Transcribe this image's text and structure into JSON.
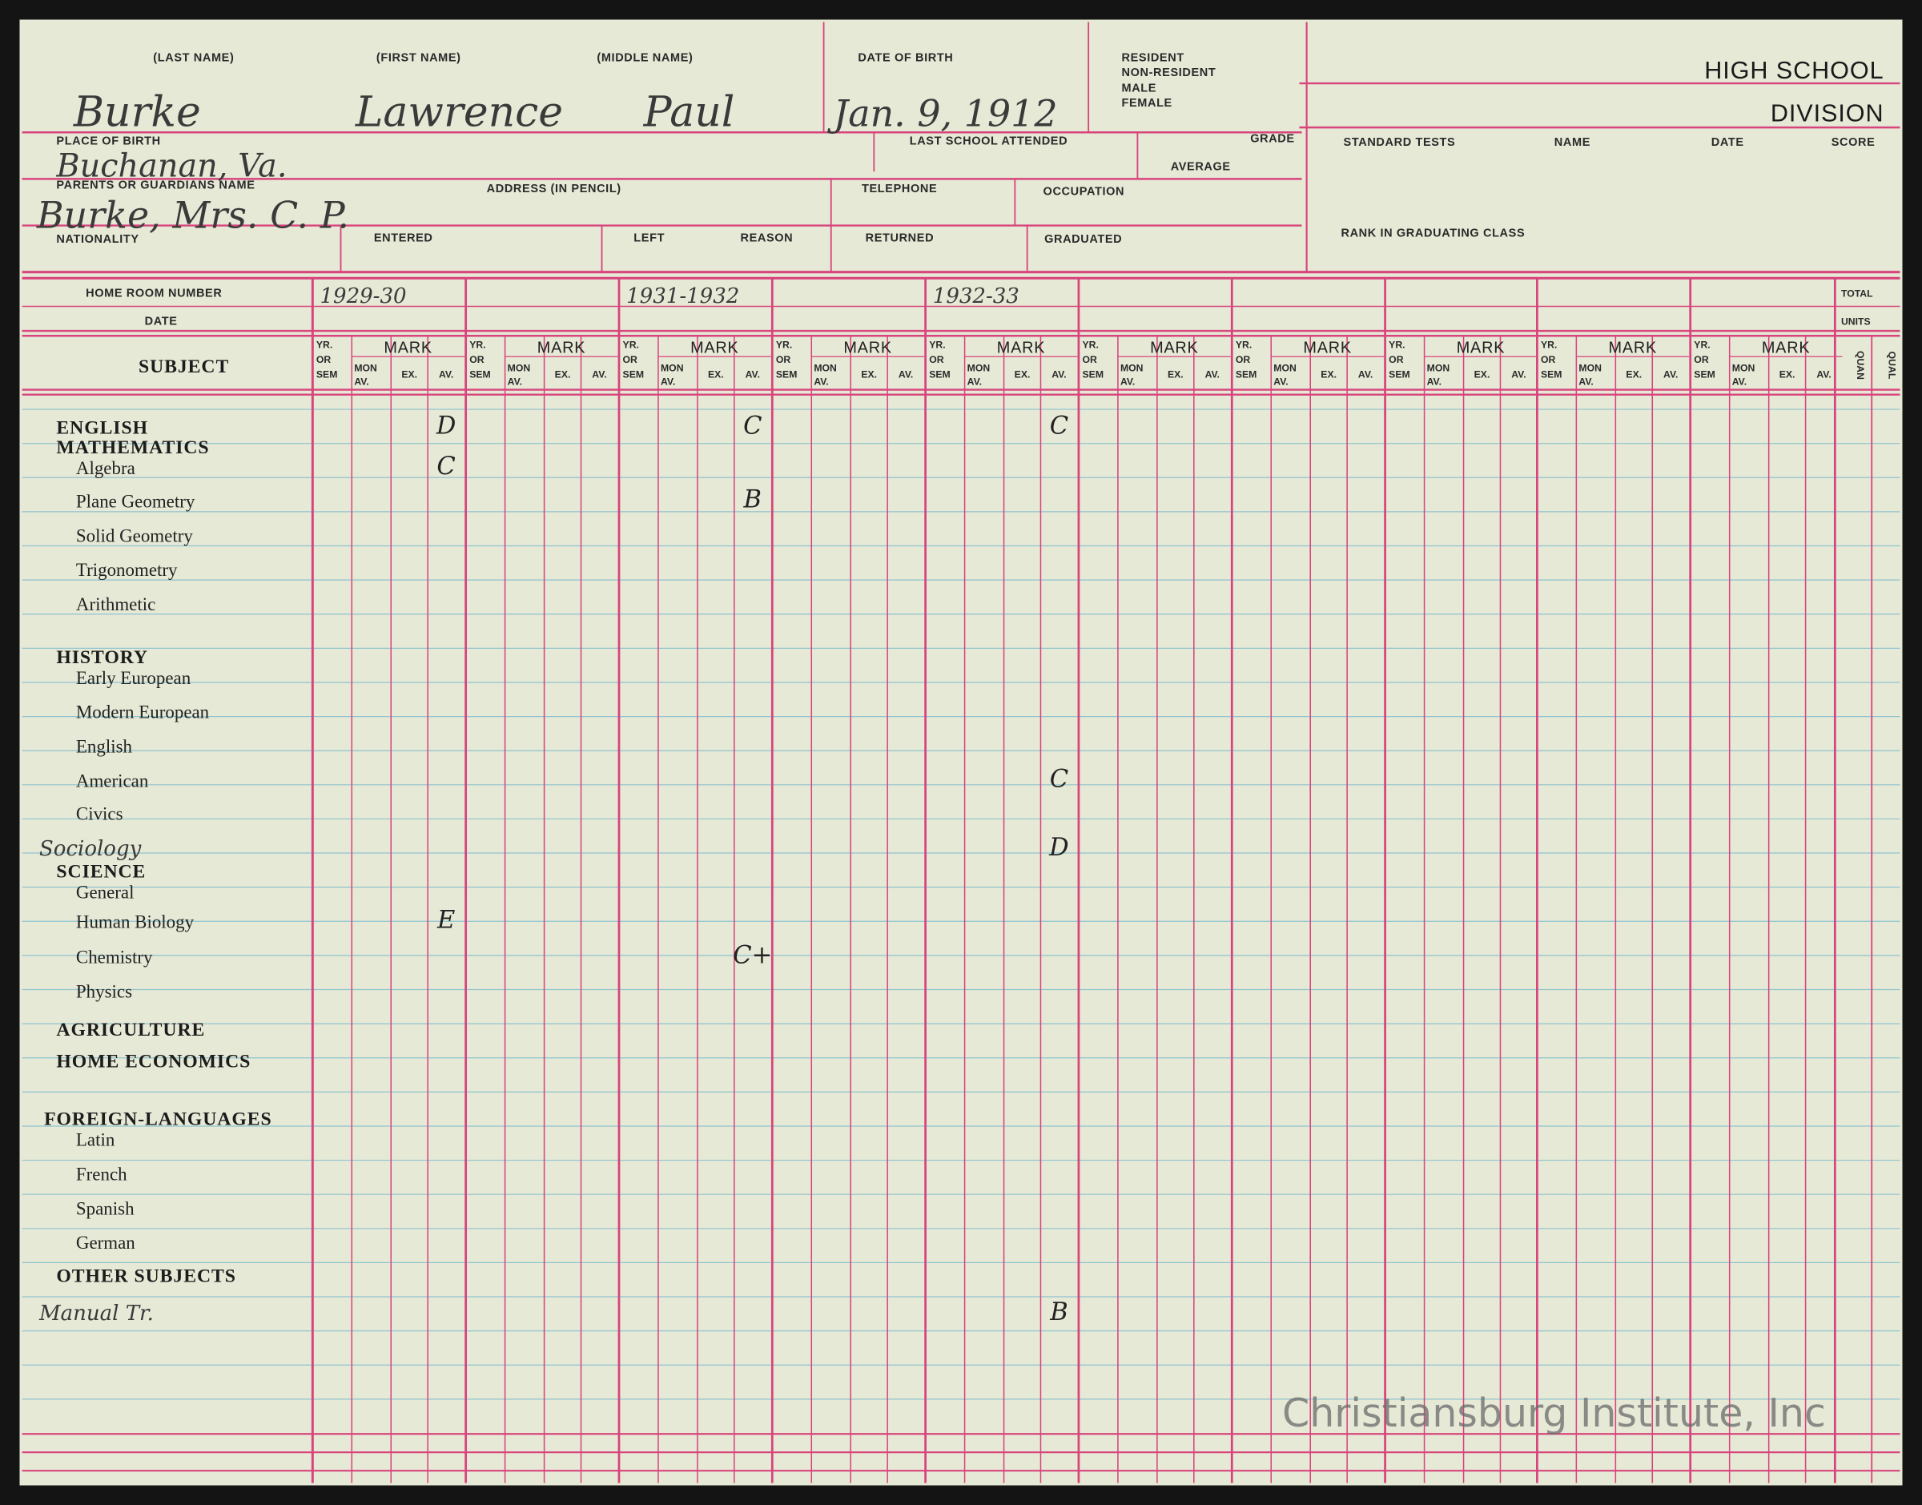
{
  "header": {
    "last_name_label": "(LAST NAME)",
    "first_name_label": "(FIRST NAME)",
    "middle_name_label": "(MIDDLE NAME)",
    "date_of_birth_label": "DATE OF BIRTH",
    "status_labels": [
      "RESIDENT",
      "NON-RESIDENT",
      "MALE",
      "FEMALE"
    ],
    "division_line1": "HIGH SCHOOL",
    "division_line2": "DIVISION",
    "last_name": "Burke",
    "first_name": "Lawrence",
    "middle_name": "Paul",
    "date_of_birth": "Jan. 9, 1912",
    "place_of_birth_label": "PLACE OF BIRTH",
    "last_school_label": "LAST SCHOOL ATTENDED",
    "grade_label": "GRADE",
    "average_label": "AVERAGE",
    "standard_tests_label": "STANDARD TESTS",
    "tests_name_label": "NAME",
    "tests_date_label": "DATE",
    "tests_score_label": "SCORE",
    "place_of_birth": "Buchanan, Va.",
    "parents_label": "PARENTS OR GUARDIANS NAME",
    "address_label": "ADDRESS (IN PENCIL)",
    "telephone_label": "TELEPHONE",
    "occupation_label": "OCCUPATION",
    "parents": "Burke, Mrs. C. P.",
    "nationality_label": "NATIONALITY",
    "entered_label": "ENTERED",
    "left_label": "LEFT",
    "reason_label": "REASON",
    "returned_label": "RETURNED",
    "graduated_label": "GRADUATED",
    "rank_label": "RANK IN GRADUATING CLASS"
  },
  "grid": {
    "home_room_label": "HOME ROOM NUMBER",
    "date_label": "DATE",
    "subject_label": "SUBJECT",
    "total_label": "TOTAL",
    "units_label": "UNITS",
    "quan_label": "QUAN",
    "qual_label": "QUAL",
    "yr_sem_label": [
      "YR.",
      "OR",
      "SEM"
    ],
    "mark_label": "MARK",
    "mon_av_label": [
      "MON",
      "AV."
    ],
    "ex_label": "EX.",
    "av_label": "AV.",
    "years": [
      "1929-30",
      null,
      "1931-1932",
      null,
      "1932-33",
      null,
      null,
      null,
      null,
      null
    ]
  },
  "subjects": [
    {
      "label": "ENGLISH",
      "heading": true,
      "marks": [
        "D",
        null,
        "C",
        null,
        "C",
        null,
        null,
        null,
        null,
        null
      ]
    },
    {
      "label": "MATHEMATICS",
      "heading": true
    },
    {
      "label": "Algebra",
      "marks": [
        "C",
        null,
        null,
        null,
        null,
        null,
        null,
        null,
        null,
        null
      ]
    },
    {
      "label": "Plane Geometry",
      "marks": [
        null,
        null,
        "B",
        null,
        null,
        null,
        null,
        null,
        null,
        null
      ]
    },
    {
      "label": "Solid Geometry"
    },
    {
      "label": "Trigonometry"
    },
    {
      "label": "Arithmetic"
    },
    {
      "label": "HISTORY",
      "heading": true
    },
    {
      "label": "Early European"
    },
    {
      "label": "Modern European"
    },
    {
      "label": "English"
    },
    {
      "label": "American",
      "marks": [
        null,
        null,
        null,
        null,
        "C",
        null,
        null,
        null,
        null,
        null
      ]
    },
    {
      "label": "Civics"
    },
    {
      "label": "Sociology",
      "handwritten": true,
      "marks": [
        null,
        null,
        null,
        null,
        "D",
        null,
        null,
        null,
        null,
        null
      ]
    },
    {
      "label": "SCIENCE",
      "heading": true
    },
    {
      "label": "General"
    },
    {
      "label": "Human Biology",
      "marks": [
        "E",
        null,
        null,
        null,
        null,
        null,
        null,
        null,
        null,
        null
      ]
    },
    {
      "label": "Chemistry",
      "marks": [
        null,
        null,
        "C+",
        null,
        null,
        null,
        null,
        null,
        null,
        null
      ]
    },
    {
      "label": "Physics"
    },
    {
      "label": "AGRICULTURE",
      "heading": true
    },
    {
      "label": "HOME ECONOMICS",
      "heading": true
    },
    {
      "label": "FOREIGN-LANGUAGES",
      "heading": true
    },
    {
      "label": "Latin"
    },
    {
      "label": "French"
    },
    {
      "label": "Spanish"
    },
    {
      "label": "German"
    },
    {
      "label": "OTHER SUBJECTS",
      "heading": true
    },
    {
      "label": "Manual Tr.",
      "handwritten": true,
      "marks": [
        null,
        null,
        null,
        null,
        "B",
        null,
        null,
        null,
        null,
        null
      ]
    }
  ],
  "watermark": "Christiansburg Institute, Inc"
}
